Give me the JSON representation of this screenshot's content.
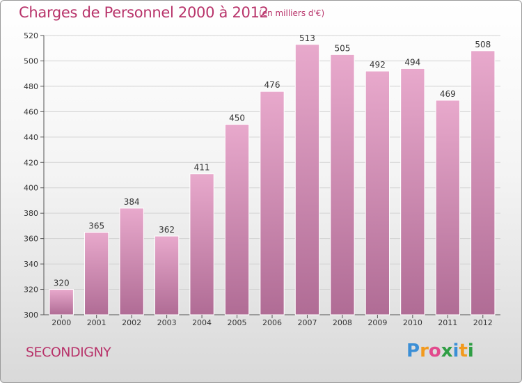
{
  "header": {
    "title": "Charges de Personnel 2000 à 2012",
    "subtitle": "(en milliers d'€)"
  },
  "footer": {
    "commune": "SECONDIGNY",
    "logo_letters": [
      "P",
      "r",
      "o",
      "x",
      "i",
      "t",
      "i"
    ]
  },
  "colors": {
    "title": "#b8336a",
    "bar_top": "#e8a9cc",
    "bar_bottom": "#b06c95",
    "logo_letters": [
      "#3b8fd6",
      "#f29a1e",
      "#e24a8d",
      "#2f9e44",
      "#3b8fd6",
      "#f29a1e",
      "#2f9e44"
    ]
  },
  "chart_data": {
    "type": "bar",
    "categories": [
      "2000",
      "2001",
      "2002",
      "2003",
      "2004",
      "2005",
      "2006",
      "2007",
      "2008",
      "2009",
      "2010",
      "2011",
      "2012"
    ],
    "values": [
      320,
      365,
      384,
      362,
      411,
      450,
      476,
      513,
      505,
      492,
      494,
      469,
      508
    ],
    "ylim": [
      300,
      520
    ],
    "yticks": [
      300,
      320,
      340,
      360,
      380,
      400,
      420,
      440,
      460,
      480,
      500,
      520
    ],
    "grid": true
  }
}
